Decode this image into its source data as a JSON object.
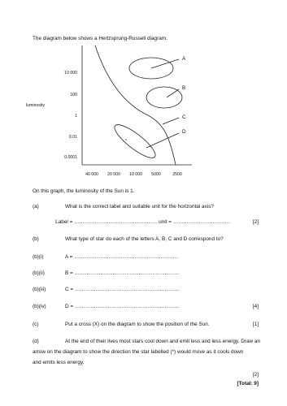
{
  "intro": "The diagram below shows a Hertzsprung-Russell diagram.",
  "diagram": {
    "y_axis_label": "luminosity",
    "y_labels": [
      "10 000",
      "100",
      "1",
      "0.01",
      "0.0001"
    ],
    "x_labels": [
      "40 000",
      "20 000",
      "10 000",
      "5000",
      "2500"
    ],
    "letters": [
      "A",
      "B",
      "C",
      "D"
    ],
    "star_marker": "*"
  },
  "sun_note": "On this graph, the luminosity of the Sun is 1.",
  "part_a": {
    "number": "(a)",
    "question": "What is the correct label and suitable unit for the horizontal axis?",
    "answer_line": "Label = ………………………………………… unit = ……………………………",
    "marks": "[2]"
  },
  "part_b": {
    "number": "(b)",
    "question": "What type of star do each of the letters A, B, C and D correspond to?",
    "items": [
      {
        "number": "(b)(i)",
        "answer": "A = ……………………………………………………"
      },
      {
        "number": "(b)(ii)",
        "answer": "B = ……………………………………………………"
      },
      {
        "number": "(b)(iii)",
        "answer": "C = ……………………………………………………"
      },
      {
        "number": "(b)(iv)",
        "answer": "D = ……………………………………………………"
      }
    ],
    "marks": "[4]"
  },
  "part_c": {
    "number": "(c)",
    "question": "Put a cross (X) on the diagram to show the position of the Sun.",
    "marks": "[1]"
  },
  "part_d": {
    "number": "(d)",
    "lines": [
      "At the end of their lives most stars cool down and emit less and less energy. Draw an",
      "arrow on the diagram to show the direction the star labelled (*) would move as it cools down",
      "and emits less energy."
    ],
    "marks": "[2]"
  },
  "total": "[Total: 9]"
}
